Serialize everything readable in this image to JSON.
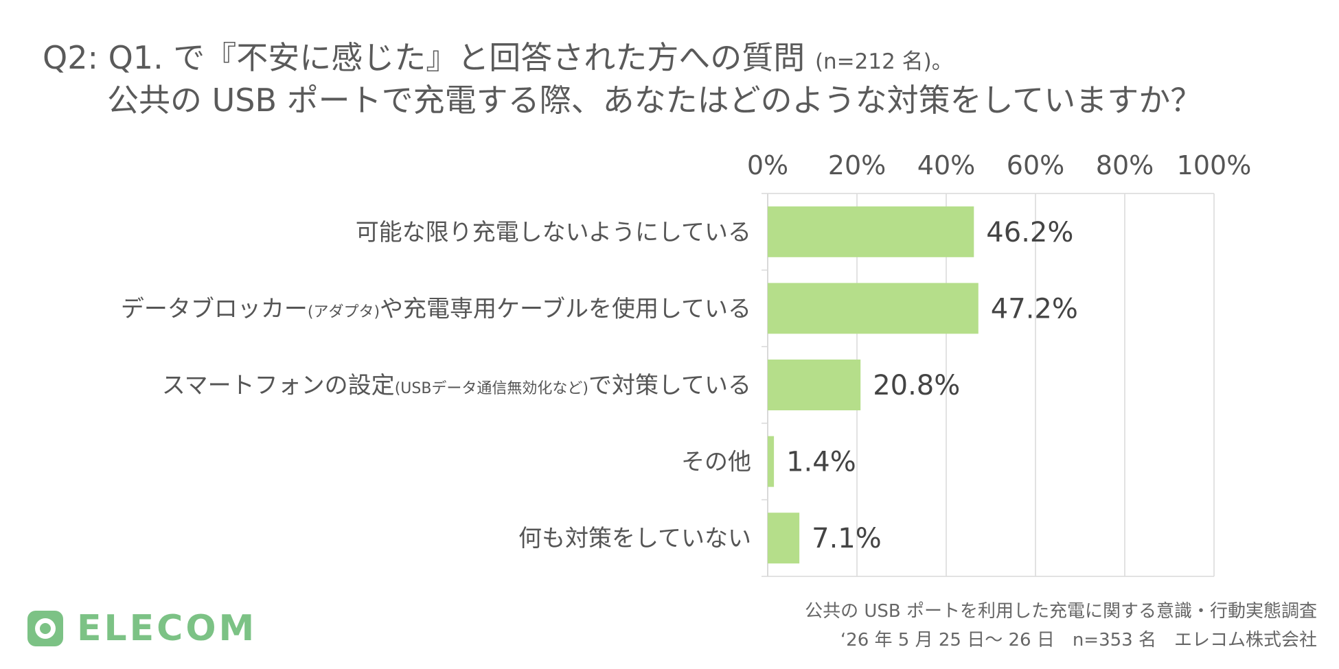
{
  "header": {
    "title_line1": "Q2: Q1. で『不安に感じた』と回答された方への質問",
    "title_note": "(n=212 名)。",
    "title_line2": "公共の USB ポートで充電する際、あなたはどのような対策をしていますか？"
  },
  "chart_data": {
    "type": "bar",
    "orientation": "horizontal",
    "categories": [
      {
        "main": "可能な限り充電しないようにしている",
        "small": "",
        "tail": ""
      },
      {
        "main": "データブロッカー",
        "small": "(アダプタ)",
        "tail": "や充電専用ケーブルを使用している"
      },
      {
        "main": "スマートフォンの設定",
        "small": "(USBデータ通信無効化など)",
        "tail": "で対策している"
      },
      {
        "main": "その他",
        "small": "",
        "tail": ""
      },
      {
        "main": "何も対策をしていない",
        "small": "",
        "tail": ""
      }
    ],
    "values": [
      46.2,
      47.2,
      20.8,
      1.4,
      7.1
    ],
    "value_labels": [
      "46.2%",
      "47.2%",
      "20.8%",
      "1.4%",
      "7.1%"
    ],
    "xlim": [
      0,
      100
    ],
    "ticks": [
      0,
      20,
      40,
      60,
      80,
      100
    ],
    "tick_labels": [
      "0%",
      "20%",
      "40%",
      "60%",
      "80%",
      "100%"
    ],
    "axis_position": "top",
    "grid": true,
    "legend": "none",
    "bar_color": "#b5de8a",
    "grid_color": "#d9d9d9"
  },
  "footer": {
    "logo_text": "ELECOM",
    "logo_icon": "elecom-logo-icon",
    "source_line1": "公共の USB ポートを利用した充電に関する意識・行動実態調査",
    "source_line2": "‘26 年 5 月 25 日〜 26 日　n=353 名　エレコム株式会社"
  }
}
